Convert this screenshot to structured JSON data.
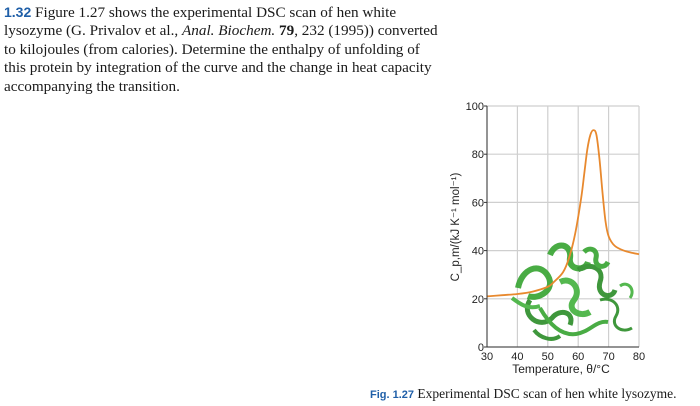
{
  "problem": {
    "number": "1.32",
    "line1": "Figure 1.27 shows the experimental DSC scan of hen white",
    "line2_pre": "lysozyme (G. Privalov et al., ",
    "line2_journal": "Anal. Biochem.",
    "line2_volume": "79",
    "line2_post": ", 232 (1995)) converted",
    "line3": "to kilojoules (from calories). Determine the enthalpy of unfolding of",
    "line4": "this protein by integration of the curve and the change in heat capacity",
    "line5": "accompanying the transition."
  },
  "chart_data": {
    "type": "line",
    "xlabel": "Temperature, θ/°C",
    "ylabel": "C_p,m/(kJ K⁻¹ mol⁻¹)",
    "xlim": [
      30,
      80
    ],
    "ylim": [
      0,
      100
    ],
    "x_ticks": [
      30,
      40,
      50,
      60,
      70,
      80
    ],
    "y_ticks": [
      0,
      20,
      40,
      60,
      80,
      100
    ],
    "grid": true,
    "series": [
      {
        "color": "#e8892e",
        "x": [
          30,
          35,
          40,
          45,
          50,
          52,
          55,
          57,
          59,
          61,
          62,
          63,
          64,
          65,
          66,
          67,
          68,
          69,
          70,
          72,
          75,
          78,
          80
        ],
        "y": [
          21,
          21.5,
          22,
          23,
          25,
          27,
          31,
          37,
          47,
          62,
          72,
          82,
          88,
          90,
          88,
          78,
          64,
          52,
          46,
          42,
          40,
          39,
          38.5
        ]
      }
    ],
    "protein_icon": "lysozyme-ribbon-structure"
  },
  "caption": {
    "label": "Fig. 1.27",
    "text": "Experimental DSC scan of hen white lysozyme."
  },
  "colors": {
    "accent": "#1f5fa8",
    "curve": "#e8892e",
    "protein": "#3aa635",
    "grid": "#cfcfcf"
  }
}
